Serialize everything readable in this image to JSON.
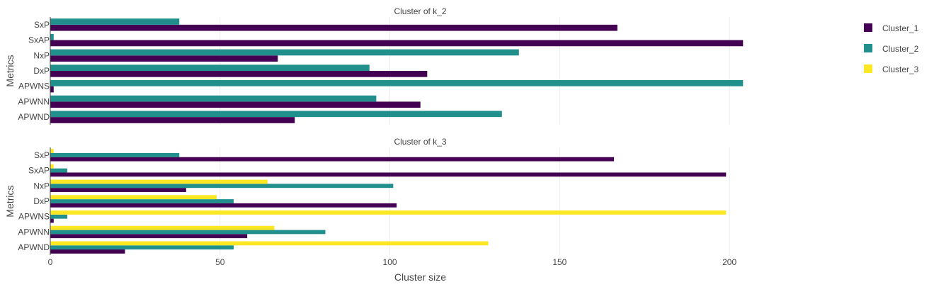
{
  "chart_data": {
    "type": "bar",
    "orientation": "horizontal",
    "xlabel": "Cluster size",
    "ylabel": "Metrics",
    "xlim": [
      0,
      225
    ],
    "xticks": [
      0,
      50,
      100,
      150,
      200
    ],
    "grid": true,
    "legend_position": "top-right",
    "legend": [
      {
        "name": "Cluster_1",
        "color": "#440154"
      },
      {
        "name": "Cluster_2",
        "color": "#21908d"
      },
      {
        "name": "Cluster_3",
        "color": "#fde725"
      }
    ],
    "subplots": [
      {
        "title": "Cluster of k_2",
        "categories": [
          "SxP",
          "SxAP",
          "NxP",
          "DxP",
          "APWNS",
          "APWNN",
          "APWND"
        ],
        "series": [
          {
            "name": "Cluster_1",
            "values": [
              167,
              204,
              67,
              111,
              1,
              109,
              72
            ]
          },
          {
            "name": "Cluster_2",
            "values": [
              38,
              1,
              138,
              94,
              204,
              96,
              133
            ]
          }
        ]
      },
      {
        "title": "Cluster of k_3",
        "categories": [
          "SxP",
          "SxAP",
          "NxP",
          "DxP",
          "APWNS",
          "APWNN",
          "APWND"
        ],
        "series": [
          {
            "name": "Cluster_1",
            "values": [
              166,
              199,
              40,
              102,
              1,
              58,
              22
            ]
          },
          {
            "name": "Cluster_2",
            "values": [
              38,
              5,
              101,
              54,
              5,
              81,
              54
            ]
          },
          {
            "name": "Cluster_3",
            "values": [
              1,
              1,
              64,
              49,
              199,
              66,
              129
            ]
          }
        ]
      }
    ]
  }
}
